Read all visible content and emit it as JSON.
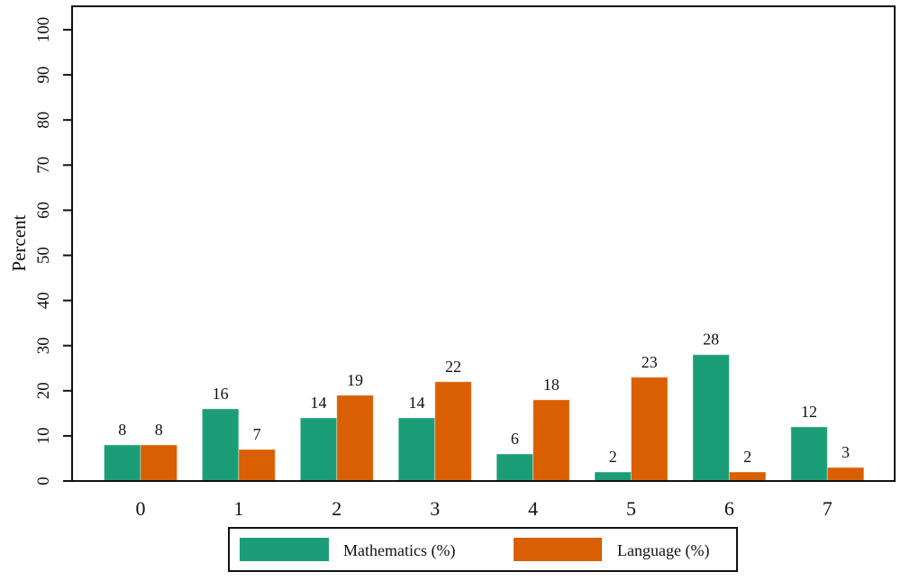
{
  "chart_data": {
    "type": "bar",
    "title": "",
    "xlabel": "",
    "ylabel": "Percent",
    "ylim": [
      0,
      100
    ],
    "yticks": [
      0,
      10,
      20,
      30,
      40,
      50,
      60,
      70,
      80,
      90,
      100
    ],
    "categories": [
      "0",
      "1",
      "2",
      "3",
      "4",
      "5",
      "6",
      "7"
    ],
    "series": [
      {
        "name": "Mathematics (%)",
        "color": "#1b9e77",
        "values": [
          8,
          16,
          14,
          14,
          6,
          2,
          28,
          12
        ]
      },
      {
        "name": "Language (%)",
        "color": "#d95f02",
        "values": [
          8,
          7,
          19,
          22,
          18,
          23,
          2,
          3
        ]
      }
    ],
    "data_labels": true,
    "grid": false,
    "legend_placement": "bottom"
  }
}
